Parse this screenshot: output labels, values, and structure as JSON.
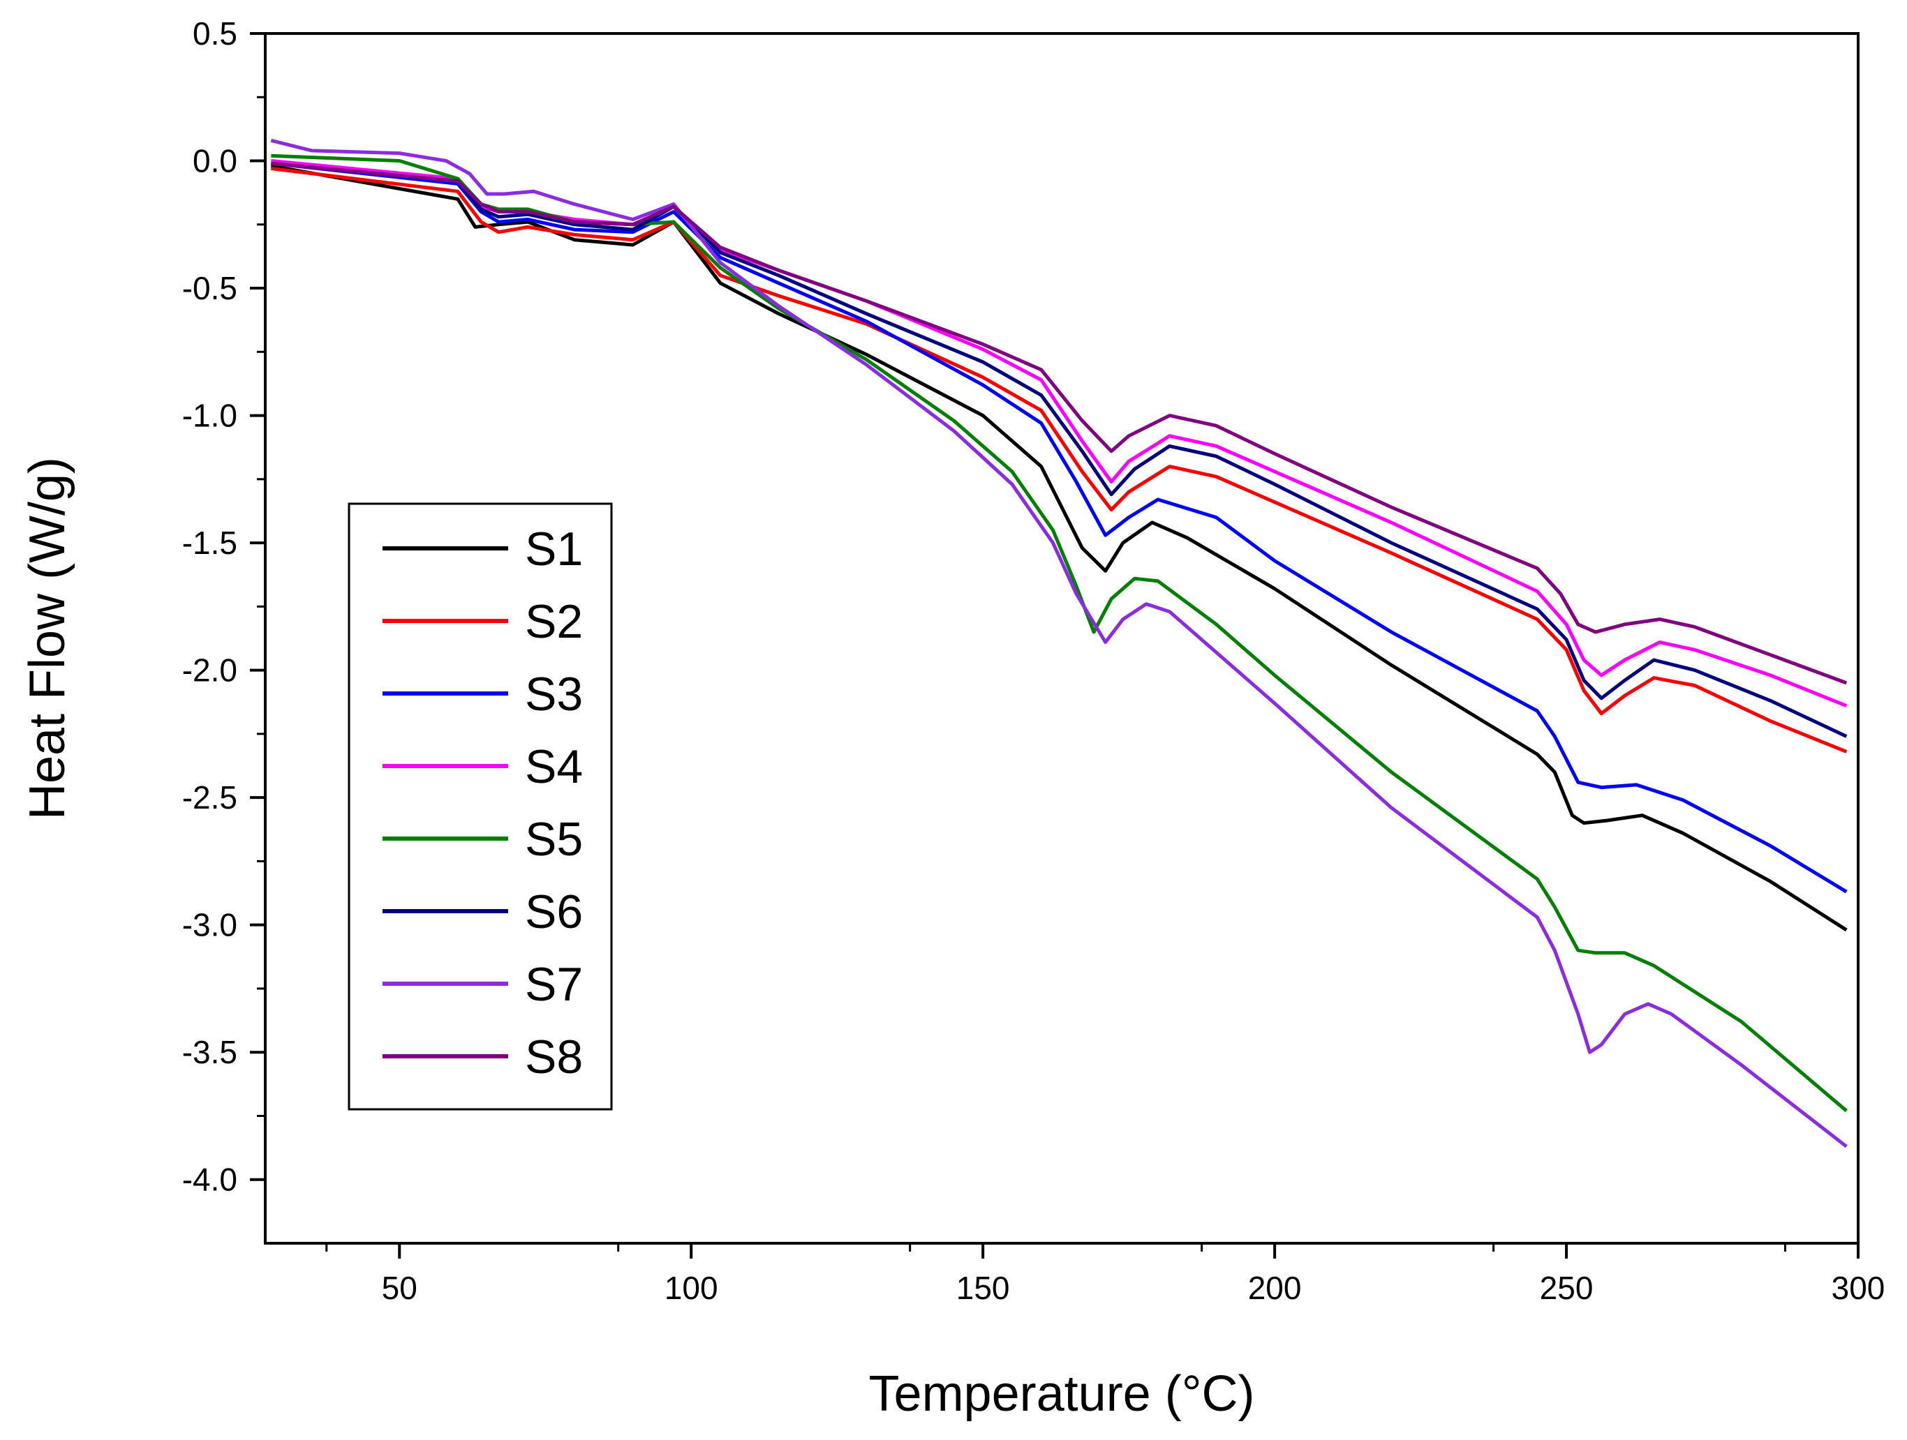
{
  "chart_data": {
    "type": "line",
    "title": "",
    "xlabel": "Temperature (°C)",
    "ylabel": "Heat Flow (W/g)",
    "xlim": [
      27,
      300
    ],
    "ylim": [
      -4.25,
      0.5
    ],
    "xticks": [
      50,
      100,
      150,
      200,
      250,
      300
    ],
    "xtick_labels": [
      "50",
      "100",
      "150",
      "200",
      "250",
      "300"
    ],
    "yticks": [
      0.5,
      0.0,
      -0.5,
      -1.0,
      -1.5,
      -2.0,
      -2.5,
      -3.0,
      -3.5,
      -4.0
    ],
    "ytick_labels": [
      "0.5",
      "0.0",
      "-0.5",
      "-1.0",
      "-1.5",
      "-2.0",
      "-2.5",
      "-3.0",
      "-3.5",
      "-4.0"
    ],
    "legend_position": "left-middle",
    "grid": false,
    "series": [
      {
        "name": "S1",
        "color": "#000000",
        "points": [
          [
            28,
            -0.02
          ],
          [
            60,
            -0.15
          ],
          [
            63,
            -0.26
          ],
          [
            67,
            -0.25
          ],
          [
            72,
            -0.24
          ],
          [
            80,
            -0.31
          ],
          [
            90,
            -0.33
          ],
          [
            97,
            -0.24
          ],
          [
            105,
            -0.48
          ],
          [
            115,
            -0.6
          ],
          [
            130,
            -0.76
          ],
          [
            150,
            -1.0
          ],
          [
            160,
            -1.2
          ],
          [
            167,
            -1.52
          ],
          [
            171,
            -1.61
          ],
          [
            174,
            -1.5
          ],
          [
            179,
            -1.42
          ],
          [
            185,
            -1.48
          ],
          [
            200,
            -1.68
          ],
          [
            220,
            -1.98
          ],
          [
            245,
            -2.33
          ],
          [
            248,
            -2.4
          ],
          [
            251,
            -2.57
          ],
          [
            253,
            -2.6
          ],
          [
            257,
            -2.59
          ],
          [
            263,
            -2.57
          ],
          [
            270,
            -2.64
          ],
          [
            285,
            -2.83
          ],
          [
            298,
            -3.02
          ]
        ]
      },
      {
        "name": "S2",
        "color": "#ff0000",
        "points": [
          [
            28,
            -0.03
          ],
          [
            60,
            -0.12
          ],
          [
            64,
            -0.24
          ],
          [
            67,
            -0.28
          ],
          [
            72,
            -0.26
          ],
          [
            80,
            -0.29
          ],
          [
            90,
            -0.31
          ],
          [
            97,
            -0.24
          ],
          [
            105,
            -0.45
          ],
          [
            115,
            -0.53
          ],
          [
            130,
            -0.64
          ],
          [
            150,
            -0.85
          ],
          [
            160,
            -0.98
          ],
          [
            167,
            -1.22
          ],
          [
            172,
            -1.37
          ],
          [
            175,
            -1.3
          ],
          [
            182,
            -1.2
          ],
          [
            190,
            -1.24
          ],
          [
            200,
            -1.34
          ],
          [
            220,
            -1.54
          ],
          [
            245,
            -1.8
          ],
          [
            250,
            -1.92
          ],
          [
            253,
            -2.08
          ],
          [
            256,
            -2.17
          ],
          [
            260,
            -2.1
          ],
          [
            265,
            -2.03
          ],
          [
            272,
            -2.06
          ],
          [
            285,
            -2.2
          ],
          [
            298,
            -2.32
          ]
        ]
      },
      {
        "name": "S3",
        "color": "#0000ff",
        "points": [
          [
            28,
            -0.01
          ],
          [
            60,
            -0.09
          ],
          [
            64,
            -0.2
          ],
          [
            67,
            -0.24
          ],
          [
            72,
            -0.23
          ],
          [
            80,
            -0.27
          ],
          [
            90,
            -0.28
          ],
          [
            97,
            -0.2
          ],
          [
            105,
            -0.38
          ],
          [
            115,
            -0.48
          ],
          [
            130,
            -0.63
          ],
          [
            150,
            -0.88
          ],
          [
            160,
            -1.03
          ],
          [
            166,
            -1.26
          ],
          [
            171,
            -1.47
          ],
          [
            175,
            -1.4
          ],
          [
            180,
            -1.33
          ],
          [
            190,
            -1.4
          ],
          [
            200,
            -1.57
          ],
          [
            220,
            -1.85
          ],
          [
            245,
            -2.16
          ],
          [
            248,
            -2.26
          ],
          [
            252,
            -2.44
          ],
          [
            256,
            -2.46
          ],
          [
            262,
            -2.45
          ],
          [
            270,
            -2.51
          ],
          [
            285,
            -2.69
          ],
          [
            298,
            -2.87
          ]
        ]
      },
      {
        "name": "S4",
        "color": "#ff00ff",
        "points": [
          [
            28,
            0.0
          ],
          [
            60,
            -0.07
          ],
          [
            64,
            -0.18
          ],
          [
            67,
            -0.2
          ],
          [
            72,
            -0.2
          ],
          [
            80,
            -0.23
          ],
          [
            90,
            -0.25
          ],
          [
            97,
            -0.18
          ],
          [
            105,
            -0.35
          ],
          [
            115,
            -0.43
          ],
          [
            130,
            -0.55
          ],
          [
            150,
            -0.74
          ],
          [
            160,
            -0.86
          ],
          [
            167,
            -1.1
          ],
          [
            172,
            -1.26
          ],
          [
            175,
            -1.18
          ],
          [
            182,
            -1.08
          ],
          [
            190,
            -1.12
          ],
          [
            200,
            -1.22
          ],
          [
            220,
            -1.42
          ],
          [
            245,
            -1.69
          ],
          [
            250,
            -1.82
          ],
          [
            253,
            -1.96
          ],
          [
            256,
            -2.02
          ],
          [
            260,
            -1.96
          ],
          [
            266,
            -1.89
          ],
          [
            272,
            -1.92
          ],
          [
            285,
            -2.02
          ],
          [
            298,
            -2.14
          ]
        ]
      },
      {
        "name": "S5",
        "color": "#008000",
        "points": [
          [
            28,
            0.02
          ],
          [
            50,
            0.0
          ],
          [
            60,
            -0.07
          ],
          [
            64,
            -0.17
          ],
          [
            67,
            -0.19
          ],
          [
            72,
            -0.19
          ],
          [
            80,
            -0.24
          ],
          [
            90,
            -0.25
          ],
          [
            97,
            -0.24
          ],
          [
            105,
            -0.42
          ],
          [
            115,
            -0.58
          ],
          [
            130,
            -0.78
          ],
          [
            145,
            -1.02
          ],
          [
            155,
            -1.22
          ],
          [
            162,
            -1.45
          ],
          [
            166,
            -1.67
          ],
          [
            169,
            -1.85
          ],
          [
            172,
            -1.72
          ],
          [
            176,
            -1.64
          ],
          [
            180,
            -1.65
          ],
          [
            190,
            -1.82
          ],
          [
            200,
            -2.02
          ],
          [
            220,
            -2.4
          ],
          [
            245,
            -2.82
          ],
          [
            248,
            -2.93
          ],
          [
            252,
            -3.1
          ],
          [
            255,
            -3.11
          ],
          [
            260,
            -3.11
          ],
          [
            265,
            -3.16
          ],
          [
            280,
            -3.38
          ],
          [
            298,
            -3.73
          ]
        ]
      },
      {
        "name": "S6",
        "color": "#000080",
        "points": [
          [
            28,
            -0.01
          ],
          [
            60,
            -0.08
          ],
          [
            64,
            -0.19
          ],
          [
            67,
            -0.22
          ],
          [
            72,
            -0.21
          ],
          [
            80,
            -0.25
          ],
          [
            90,
            -0.27
          ],
          [
            97,
            -0.18
          ],
          [
            105,
            -0.36
          ],
          [
            115,
            -0.45
          ],
          [
            130,
            -0.6
          ],
          [
            150,
            -0.79
          ],
          [
            160,
            -0.92
          ],
          [
            167,
            -1.14
          ],
          [
            172,
            -1.31
          ],
          [
            176,
            -1.21
          ],
          [
            182,
            -1.12
          ],
          [
            190,
            -1.16
          ],
          [
            200,
            -1.27
          ],
          [
            220,
            -1.5
          ],
          [
            245,
            -1.76
          ],
          [
            250,
            -1.88
          ],
          [
            253,
            -2.04
          ],
          [
            256,
            -2.11
          ],
          [
            260,
            -2.04
          ],
          [
            265,
            -1.96
          ],
          [
            272,
            -2.0
          ],
          [
            285,
            -2.12
          ],
          [
            298,
            -2.26
          ]
        ]
      },
      {
        "name": "S7",
        "color": "#8b2be2",
        "points": [
          [
            28,
            0.08
          ],
          [
            35,
            0.04
          ],
          [
            50,
            0.03
          ],
          [
            58,
            0.0
          ],
          [
            62,
            -0.05
          ],
          [
            65,
            -0.13
          ],
          [
            68,
            -0.13
          ],
          [
            73,
            -0.12
          ],
          [
            80,
            -0.17
          ],
          [
            90,
            -0.23
          ],
          [
            97,
            -0.17
          ],
          [
            105,
            -0.4
          ],
          [
            115,
            -0.57
          ],
          [
            130,
            -0.8
          ],
          [
            145,
            -1.06
          ],
          [
            155,
            -1.27
          ],
          [
            162,
            -1.5
          ],
          [
            166,
            -1.7
          ],
          [
            171,
            -1.89
          ],
          [
            174,
            -1.8
          ],
          [
            178,
            -1.74
          ],
          [
            182,
            -1.77
          ],
          [
            190,
            -1.93
          ],
          [
            200,
            -2.13
          ],
          [
            220,
            -2.54
          ],
          [
            245,
            -2.97
          ],
          [
            248,
            -3.1
          ],
          [
            252,
            -3.35
          ],
          [
            254,
            -3.5
          ],
          [
            256,
            -3.47
          ],
          [
            260,
            -3.35
          ],
          [
            264,
            -3.31
          ],
          [
            268,
            -3.35
          ],
          [
            280,
            -3.55
          ],
          [
            298,
            -3.87
          ]
        ]
      },
      {
        "name": "S8",
        "color": "#800080",
        "points": [
          [
            28,
            -0.01
          ],
          [
            60,
            -0.08
          ],
          [
            64,
            -0.17
          ],
          [
            67,
            -0.2
          ],
          [
            72,
            -0.2
          ],
          [
            80,
            -0.24
          ],
          [
            90,
            -0.25
          ],
          [
            97,
            -0.18
          ],
          [
            105,
            -0.34
          ],
          [
            115,
            -0.43
          ],
          [
            130,
            -0.55
          ],
          [
            150,
            -0.72
          ],
          [
            160,
            -0.82
          ],
          [
            167,
            -1.02
          ],
          [
            172,
            -1.14
          ],
          [
            175,
            -1.08
          ],
          [
            182,
            -1.0
          ],
          [
            190,
            -1.04
          ],
          [
            200,
            -1.15
          ],
          [
            220,
            -1.36
          ],
          [
            245,
            -1.6
          ],
          [
            249,
            -1.7
          ],
          [
            252,
            -1.82
          ],
          [
            255,
            -1.85
          ],
          [
            260,
            -1.82
          ],
          [
            266,
            -1.8
          ],
          [
            272,
            -1.83
          ],
          [
            285,
            -1.94
          ],
          [
            298,
            -2.05
          ]
        ]
      }
    ]
  }
}
